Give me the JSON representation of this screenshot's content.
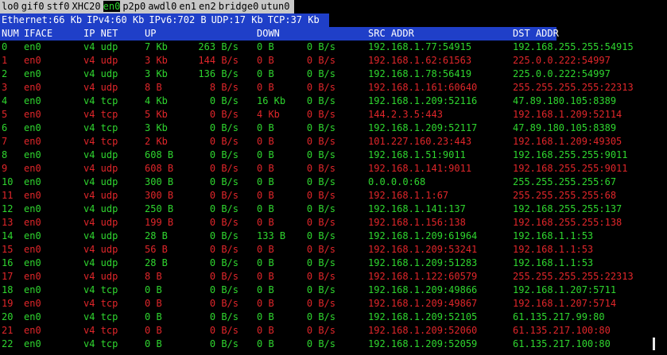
{
  "interfaces": [
    "lo0",
    "gif0",
    "stf0",
    "XHC20",
    "en0",
    "p2p0",
    "awdl0",
    "en1",
    "en2",
    "bridge0",
    "utun0"
  ],
  "selected_interface": "en0",
  "summary": [
    "Ethernet:66 Kb",
    "IPv4:60 Kb",
    "IPv6:702 B",
    "UDP:17 Kb",
    "TCP:37 Kb"
  ],
  "columns": {
    "num": "NUM",
    "iface": "IFACE",
    "ipnet": "IP NET",
    "up": "UP",
    "down": "DOWN",
    "src": "SRC ADDR",
    "dst": "DST ADDR"
  },
  "colors": {
    "green": "#2fd62f",
    "red": "#e0262a",
    "header_bg": "#1f3fc8",
    "iface_bar_bg": "#c8c8c8"
  },
  "rows": [
    {
      "num": "0",
      "iface": "en0",
      "ipnet": "v4 udp",
      "up": "7 Kb",
      "up_rate": "263 B/s",
      "down": "0 B",
      "down_rate": "0 B/s",
      "src": "192.168.1.77:54915",
      "dst": "192.168.255.255:54915",
      "color": "green"
    },
    {
      "num": "1",
      "iface": "en0",
      "ipnet": "v4 udp",
      "up": "3 Kb",
      "up_rate": "144 B/s",
      "down": "0 B",
      "down_rate": "0 B/s",
      "src": "192.168.1.62:61563",
      "dst": "225.0.0.222:54997",
      "color": "red"
    },
    {
      "num": "2",
      "iface": "en0",
      "ipnet": "v4 udp",
      "up": "3 Kb",
      "up_rate": "136 B/s",
      "down": "0 B",
      "down_rate": "0 B/s",
      "src": "192.168.1.78:56419",
      "dst": "225.0.0.222:54997",
      "color": "green"
    },
    {
      "num": "3",
      "iface": "en0",
      "ipnet": "v4 udp",
      "up": "8 B",
      "up_rate": "8 B/s",
      "down": "0 B",
      "down_rate": "0 B/s",
      "src": "192.168.1.161:60640",
      "dst": "255.255.255.255:22313",
      "color": "red"
    },
    {
      "num": "4",
      "iface": "en0",
      "ipnet": "v4 tcp",
      "up": "4 Kb",
      "up_rate": "0 B/s",
      "down": "16 Kb",
      "down_rate": "0 B/s",
      "src": "192.168.1.209:52116",
      "dst": "47.89.180.105:8389",
      "color": "green"
    },
    {
      "num": "5",
      "iface": "en0",
      "ipnet": "v4 tcp",
      "up": "5 Kb",
      "up_rate": "0 B/s",
      "down": "4 Kb",
      "down_rate": "0 B/s",
      "src": "144.2.3.5:443",
      "dst": "192.168.1.209:52114",
      "color": "red"
    },
    {
      "num": "6",
      "iface": "en0",
      "ipnet": "v4 tcp",
      "up": "3 Kb",
      "up_rate": "0 B/s",
      "down": "0 B",
      "down_rate": "0 B/s",
      "src": "192.168.1.209:52117",
      "dst": "47.89.180.105:8389",
      "color": "green"
    },
    {
      "num": "7",
      "iface": "en0",
      "ipnet": "v4 tcp",
      "up": "2 Kb",
      "up_rate": "0 B/s",
      "down": "0 B",
      "down_rate": "0 B/s",
      "src": "101.227.160.23:443",
      "dst": "192.168.1.209:49305",
      "color": "red"
    },
    {
      "num": "8",
      "iface": "en0",
      "ipnet": "v4 udp",
      "up": "608 B",
      "up_rate": "0 B/s",
      "down": "0 B",
      "down_rate": "0 B/s",
      "src": "192.168.1.51:9011",
      "dst": "192.168.255.255:9011",
      "color": "green"
    },
    {
      "num": "9",
      "iface": "en0",
      "ipnet": "v4 udp",
      "up": "608 B",
      "up_rate": "0 B/s",
      "down": "0 B",
      "down_rate": "0 B/s",
      "src": "192.168.1.141:9011",
      "dst": "192.168.255.255:9011",
      "color": "red"
    },
    {
      "num": "10",
      "iface": "en0",
      "ipnet": "v4 udp",
      "up": "300 B",
      "up_rate": "0 B/s",
      "down": "0 B",
      "down_rate": "0 B/s",
      "src": "0.0.0.0:68",
      "dst": "255.255.255.255:67",
      "color": "green"
    },
    {
      "num": "11",
      "iface": "en0",
      "ipnet": "v4 udp",
      "up": "300 B",
      "up_rate": "0 B/s",
      "down": "0 B",
      "down_rate": "0 B/s",
      "src": "192.168.1.1:67",
      "dst": "255.255.255.255:68",
      "color": "red"
    },
    {
      "num": "12",
      "iface": "en0",
      "ipnet": "v4 udp",
      "up": "250 B",
      "up_rate": "0 B/s",
      "down": "0 B",
      "down_rate": "0 B/s",
      "src": "192.168.1.141:137",
      "dst": "192.168.255.255:137",
      "color": "green"
    },
    {
      "num": "13",
      "iface": "en0",
      "ipnet": "v4 udp",
      "up": "199 B",
      "up_rate": "0 B/s",
      "down": "0 B",
      "down_rate": "0 B/s",
      "src": "192.168.1.156:138",
      "dst": "192.168.255.255:138",
      "color": "red"
    },
    {
      "num": "14",
      "iface": "en0",
      "ipnet": "v4 udp",
      "up": "28 B",
      "up_rate": "0 B/s",
      "down": "133 B",
      "down_rate": "0 B/s",
      "src": "192.168.1.209:61964",
      "dst": "192.168.1.1:53",
      "color": "green"
    },
    {
      "num": "15",
      "iface": "en0",
      "ipnet": "v4 udp",
      "up": "56 B",
      "up_rate": "0 B/s",
      "down": "0 B",
      "down_rate": "0 B/s",
      "src": "192.168.1.209:53241",
      "dst": "192.168.1.1:53",
      "color": "red"
    },
    {
      "num": "16",
      "iface": "en0",
      "ipnet": "v4 udp",
      "up": "28 B",
      "up_rate": "0 B/s",
      "down": "0 B",
      "down_rate": "0 B/s",
      "src": "192.168.1.209:51283",
      "dst": "192.168.1.1:53",
      "color": "green"
    },
    {
      "num": "17",
      "iface": "en0",
      "ipnet": "v4 udp",
      "up": "8 B",
      "up_rate": "0 B/s",
      "down": "0 B",
      "down_rate": "0 B/s",
      "src": "192.168.1.122:60579",
      "dst": "255.255.255.255:22313",
      "color": "red"
    },
    {
      "num": "18",
      "iface": "en0",
      "ipnet": "v4 tcp",
      "up": "0 B",
      "up_rate": "0 B/s",
      "down": "0 B",
      "down_rate": "0 B/s",
      "src": "192.168.1.209:49866",
      "dst": "192.168.1.207:5711",
      "color": "green"
    },
    {
      "num": "19",
      "iface": "en0",
      "ipnet": "v4 tcp",
      "up": "0 B",
      "up_rate": "0 B/s",
      "down": "0 B",
      "down_rate": "0 B/s",
      "src": "192.168.1.209:49867",
      "dst": "192.168.1.207:5714",
      "color": "red"
    },
    {
      "num": "20",
      "iface": "en0",
      "ipnet": "v4 tcp",
      "up": "0 B",
      "up_rate": "0 B/s",
      "down": "0 B",
      "down_rate": "0 B/s",
      "src": "192.168.1.209:52105",
      "dst": "61.135.217.99:80",
      "color": "green"
    },
    {
      "num": "21",
      "iface": "en0",
      "ipnet": "v4 tcp",
      "up": "0 B",
      "up_rate": "0 B/s",
      "down": "0 B",
      "down_rate": "0 B/s",
      "src": "192.168.1.209:52060",
      "dst": "61.135.217.100:80",
      "color": "red"
    },
    {
      "num": "22",
      "iface": "en0",
      "ipnet": "v4 tcp",
      "up": "0 B",
      "up_rate": "0 B/s",
      "down": "0 B",
      "down_rate": "0 B/s",
      "src": "192.168.1.209:52059",
      "dst": "61.135.217.100:80",
      "color": "green"
    }
  ]
}
